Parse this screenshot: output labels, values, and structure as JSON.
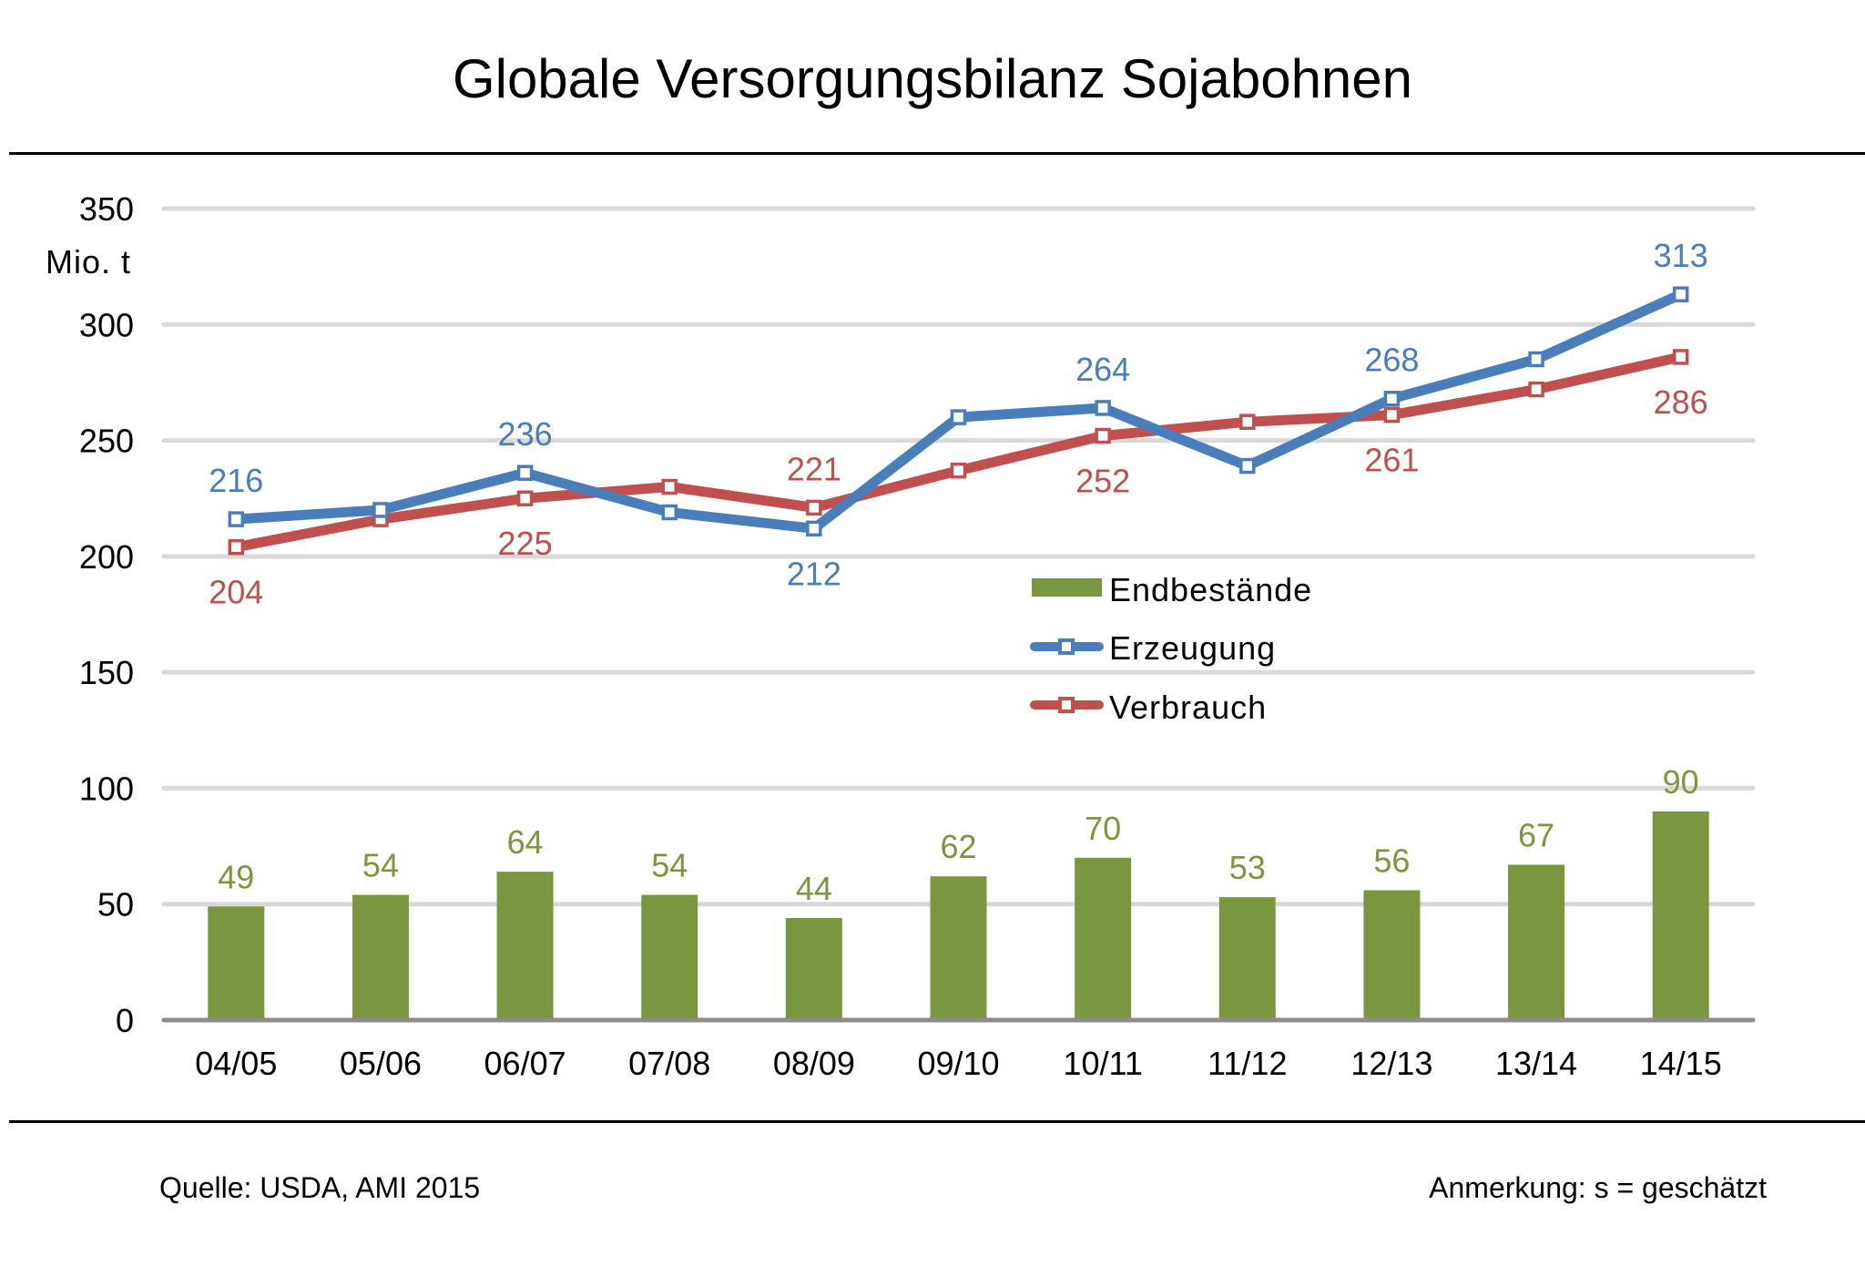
{
  "header": {
    "title": "Globale Versorgungsbilanz Sojabohnen"
  },
  "footer": {
    "source": "Quelle: USDA, AMI 2015",
    "note": "Anmerkung: s = geschätzt"
  },
  "colors": {
    "bars": "#7a963e",
    "erzeugung": "#4a7ebb",
    "verbrauch": "#c0504d",
    "grid": "#d9d9d9",
    "axis": "#8c8c8c",
    "rule": "#000000"
  },
  "chart_data": {
    "type": "bar+line",
    "title": "Globale Versorgungsbilanz Sojabohnen",
    "xlabel": "",
    "ylabel": "Mio. t",
    "ylim": [
      0,
      350
    ],
    "yticks": [
      0,
      50,
      100,
      150,
      200,
      250,
      300,
      350
    ],
    "grid": true,
    "legend_position": "center-right",
    "categories": [
      "04/05",
      "05/06",
      "06/07",
      "07/08",
      "08/09",
      "09/10",
      "10/11",
      "11/12",
      "12/13",
      "13/14",
      "14/15"
    ],
    "series": [
      {
        "name": "Endbestände",
        "type": "bar",
        "values": [
          49,
          54,
          64,
          54,
          44,
          62,
          70,
          53,
          56,
          67,
          90
        ],
        "labels": [
          "49",
          "54",
          "64",
          "54",
          "44",
          "62",
          "70",
          "53",
          "56",
          "67",
          "90"
        ]
      },
      {
        "name": "Erzeugung",
        "type": "line",
        "marker": "square",
        "values": [
          216,
          220,
          236,
          219,
          212,
          260,
          264,
          239,
          268,
          285,
          313
        ],
        "labels": [
          "216",
          null,
          "236",
          null,
          "212",
          null,
          "264",
          null,
          "268",
          null,
          "313"
        ]
      },
      {
        "name": "Verbrauch",
        "type": "line",
        "marker": "square",
        "values": [
          204,
          216,
          225,
          230,
          221,
          237,
          252,
          258,
          261,
          272,
          286
        ],
        "labels": [
          "204",
          null,
          "225",
          null,
          "221",
          null,
          "252",
          null,
          "261",
          null,
          "286"
        ]
      }
    ]
  }
}
